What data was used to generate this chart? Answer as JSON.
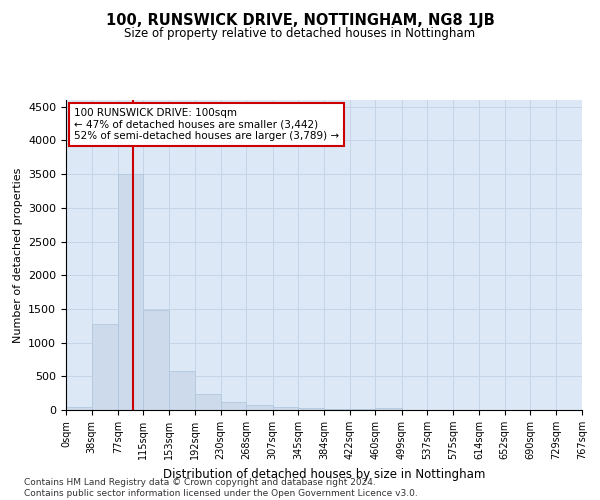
{
  "title": "100, RUNSWICK DRIVE, NOTTINGHAM, NG8 1JB",
  "subtitle": "Size of property relative to detached houses in Nottingham",
  "xlabel": "Distribution of detached houses by size in Nottingham",
  "ylabel": "Number of detached properties",
  "bar_color": "#ccdaeb",
  "bar_edge_color": "#adc4dc",
  "grid_color": "#c5d5e8",
  "background_color": "#dce8f5",
  "vline_x": 100,
  "vline_color": "#cc0000",
  "annotation_box_text": "100 RUNSWICK DRIVE: 100sqm\n← 47% of detached houses are smaller (3,442)\n52% of semi-detached houses are larger (3,789) →",
  "annotation_box_color": "#cc0000",
  "annotation_box_bg": "#ffffff",
  "footnote": "Contains HM Land Registry data © Crown copyright and database right 2024.\nContains public sector information licensed under the Open Government Licence v3.0.",
  "bins": [
    0,
    38,
    77,
    115,
    153,
    192,
    230,
    268,
    307,
    345,
    384,
    422,
    460,
    499,
    537,
    575,
    614,
    652,
    690,
    729,
    767
  ],
  "counts": [
    50,
    1280,
    3500,
    1480,
    580,
    240,
    125,
    80,
    50,
    30,
    20,
    10,
    30,
    0,
    0,
    0,
    0,
    0,
    0,
    0
  ],
  "ylim": [
    0,
    4600
  ],
  "yticks": [
    0,
    500,
    1000,
    1500,
    2000,
    2500,
    3000,
    3500,
    4000,
    4500
  ]
}
